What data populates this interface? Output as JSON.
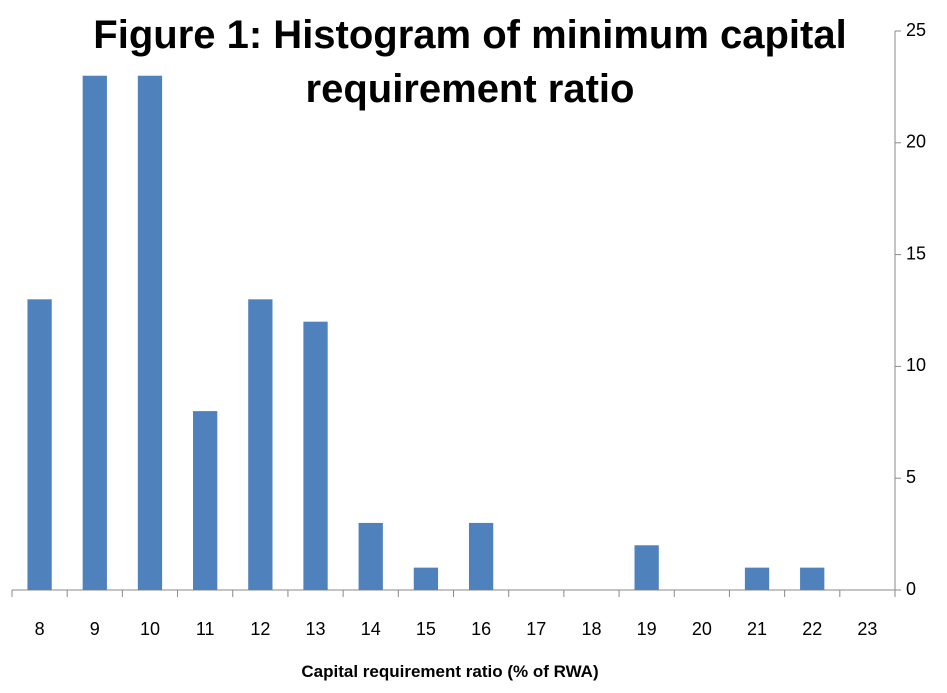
{
  "chart_data": {
    "type": "bar",
    "title": "Figure 1: Histogram of minimum capital requirement ratio",
    "x_label": "Capital requirement ratio (% of RWA)",
    "categories": [
      8,
      9,
      10,
      11,
      12,
      13,
      14,
      15,
      16,
      17,
      18,
      19,
      20,
      21,
      22,
      23
    ],
    "values": [
      13,
      23,
      23,
      8,
      13,
      12,
      3,
      1,
      3,
      0,
      0,
      2,
      0,
      1,
      1,
      0
    ],
    "color": "#4f81bd",
    "ylim": [
      0,
      25
    ],
    "yticks": [
      0,
      5,
      10,
      15,
      20,
      25
    ],
    "y_axis_side": "right",
    "grid": false
  }
}
